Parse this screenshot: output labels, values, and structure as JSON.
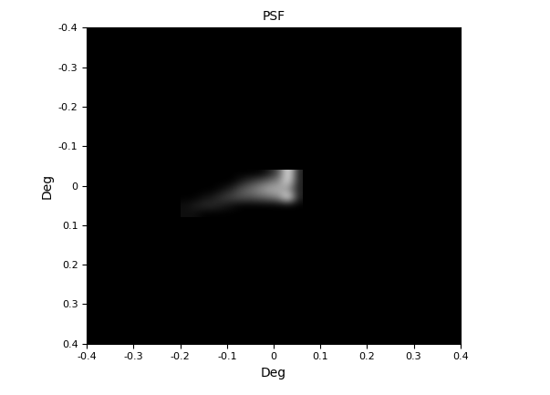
{
  "chart_data": {
    "type": "heatmap",
    "title": "PSF",
    "x_label": "Deg",
    "y_label": "Deg",
    "xlim": [
      -0.4,
      0.4
    ],
    "ylim": [
      0.4,
      -0.4
    ],
    "xticks": [
      -0.4,
      -0.3,
      -0.2,
      -0.1,
      0,
      0.1,
      0.2,
      0.3,
      0.4
    ],
    "yticks": [
      -0.4,
      -0.3,
      -0.2,
      -0.1,
      0,
      0.1,
      0.2,
      0.3,
      0.4
    ],
    "color": "gray",
    "cell_x": [
      -0.19,
      -0.17,
      -0.15,
      -0.13,
      -0.11,
      -0.09,
      -0.07,
      -0.05,
      -0.03,
      -0.01,
      0.01,
      0.03,
      0.05
    ],
    "cell_y": [
      -0.03,
      -0.01,
      0.01,
      0.03,
      0.05,
      0.07
    ],
    "cells": [
      [
        0,
        0,
        0,
        0,
        0,
        0,
        0,
        0,
        0,
        0.1,
        0.3,
        0.9,
        0.1
      ],
      [
        0,
        0,
        0,
        0,
        0,
        0,
        0.1,
        0.2,
        0.3,
        0.4,
        0.5,
        0.8,
        0.1
      ],
      [
        0,
        0,
        0,
        0,
        0.05,
        0.15,
        0.3,
        0.4,
        0.5,
        0.6,
        0.6,
        0.5,
        0.1
      ],
      [
        0,
        0,
        0.05,
        0.1,
        0.2,
        0.25,
        0.3,
        0.3,
        0.35,
        0.4,
        0.5,
        0.9,
        0.1
      ],
      [
        0.05,
        0.1,
        0.15,
        0.15,
        0.1,
        0.05,
        0,
        0,
        0,
        0,
        0,
        0,
        0
      ],
      [
        0.05,
        0.05,
        0,
        0,
        0,
        0,
        0,
        0,
        0,
        0,
        0,
        0,
        0
      ]
    ]
  }
}
